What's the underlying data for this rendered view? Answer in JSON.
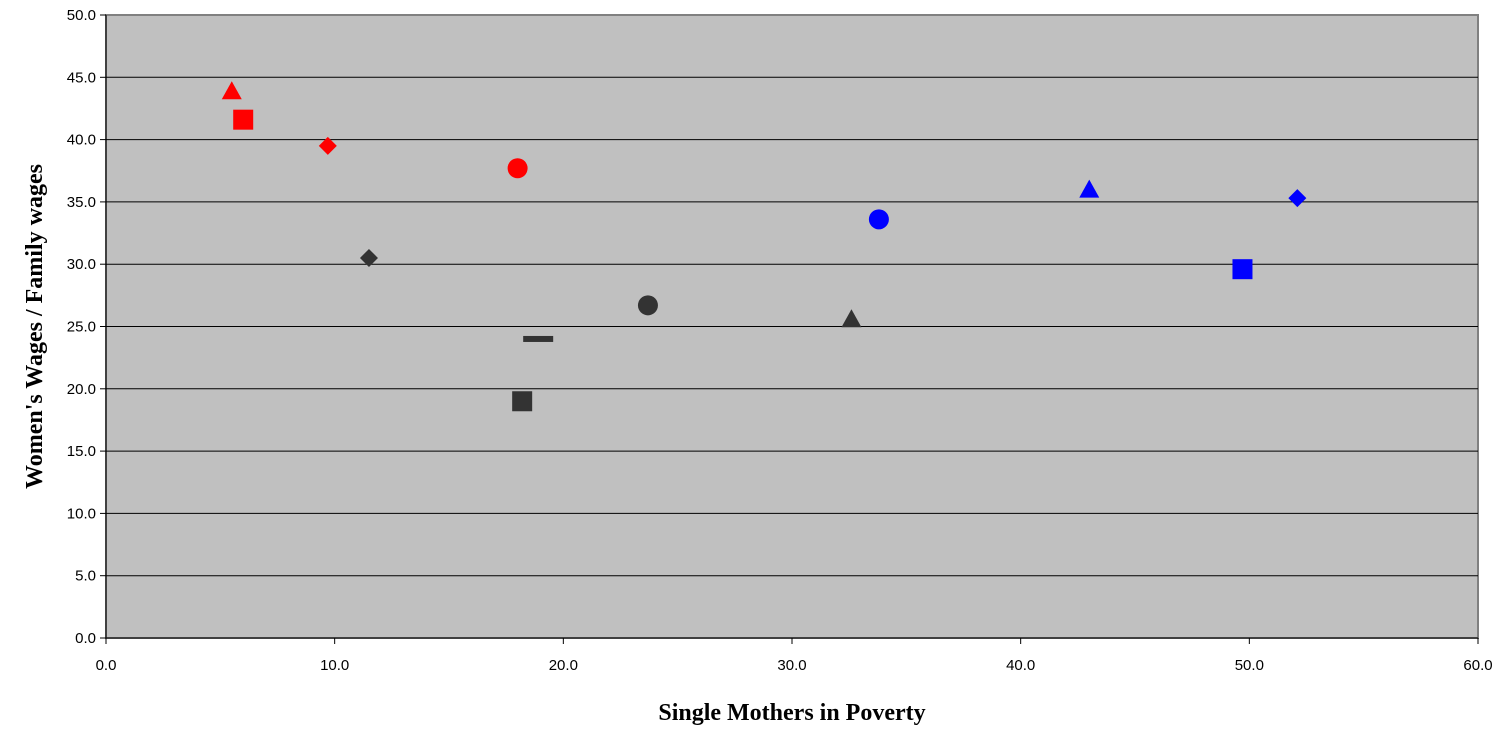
{
  "chart_data": {
    "type": "scatter",
    "title": "",
    "xlabel": "Single Mothers in Poverty",
    "ylabel": "Women's Wages / Family wages",
    "xlim": [
      0,
      60
    ],
    "ylim": [
      0,
      50
    ],
    "x_ticks": [
      "0.0",
      "10.0",
      "20.0",
      "30.0",
      "40.0",
      "50.0",
      "60.0"
    ],
    "y_ticks": [
      "0.0",
      "5.0",
      "10.0",
      "15.0",
      "20.0",
      "25.0",
      "30.0",
      "35.0",
      "40.0",
      "45.0",
      "50.0"
    ],
    "grid": "horizontal",
    "plot_background": "#c0c0c0",
    "legend": "none",
    "points": [
      {
        "x": 5.5,
        "y": 43.8,
        "marker": "triangle",
        "color": "#ff0000"
      },
      {
        "x": 6.0,
        "y": 41.6,
        "marker": "square",
        "color": "#ff0000"
      },
      {
        "x": 9.7,
        "y": 39.5,
        "marker": "diamond",
        "color": "#ff0000"
      },
      {
        "x": 18.0,
        "y": 37.7,
        "marker": "circle",
        "color": "#ff0000"
      },
      {
        "x": 11.5,
        "y": 30.5,
        "marker": "diamond",
        "color": "#333333"
      },
      {
        "x": 23.7,
        "y": 26.7,
        "marker": "circle",
        "color": "#333333"
      },
      {
        "x": 18.9,
        "y": 24.0,
        "marker": "dash",
        "color": "#333333"
      },
      {
        "x": 18.2,
        "y": 19.0,
        "marker": "square",
        "color": "#333333"
      },
      {
        "x": 32.6,
        "y": 25.5,
        "marker": "triangle",
        "color": "#333333"
      },
      {
        "x": 33.8,
        "y": 33.6,
        "marker": "circle",
        "color": "#0000ff"
      },
      {
        "x": 43.0,
        "y": 35.9,
        "marker": "triangle",
        "color": "#0000ff"
      },
      {
        "x": 49.7,
        "y": 29.6,
        "marker": "square",
        "color": "#0000ff"
      },
      {
        "x": 52.1,
        "y": 35.3,
        "marker": "diamond",
        "color": "#0000ff"
      }
    ]
  }
}
